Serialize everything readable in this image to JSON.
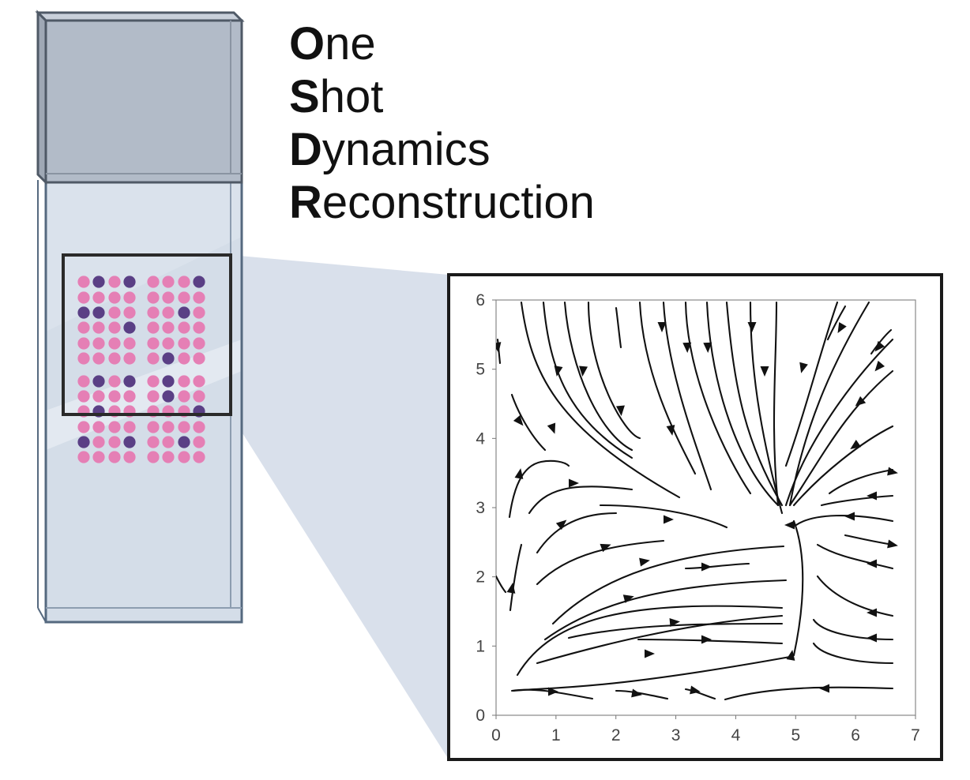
{
  "title": {
    "lines": [
      {
        "initial": "O",
        "rest": "ne"
      },
      {
        "initial": "S",
        "rest": "hot"
      },
      {
        "initial": "D",
        "rest": "ynamics"
      },
      {
        "initial": "R",
        "rest": "econstruction"
      }
    ]
  },
  "slide": {
    "dot_colors": {
      "pink": "#e57fb5",
      "purple": "#5a3f85"
    },
    "glass_color": "#d3dce7",
    "cap_color": "#b1bac7",
    "border_color": "#5a6e86"
  },
  "chart_data": {
    "type": "streamplot",
    "title": "",
    "xlabel": "",
    "ylabel": "",
    "xlim": [
      0,
      7
    ],
    "ylim": [
      0,
      6
    ],
    "x_ticks": [
      "0",
      "1",
      "2",
      "3",
      "4",
      "5",
      "6",
      "7"
    ],
    "y_ticks": [
      "0",
      "1",
      "2",
      "3",
      "4",
      "5",
      "6"
    ],
    "stable_point": [
      4.85,
      3.0
    ],
    "line_color": "#111111"
  }
}
